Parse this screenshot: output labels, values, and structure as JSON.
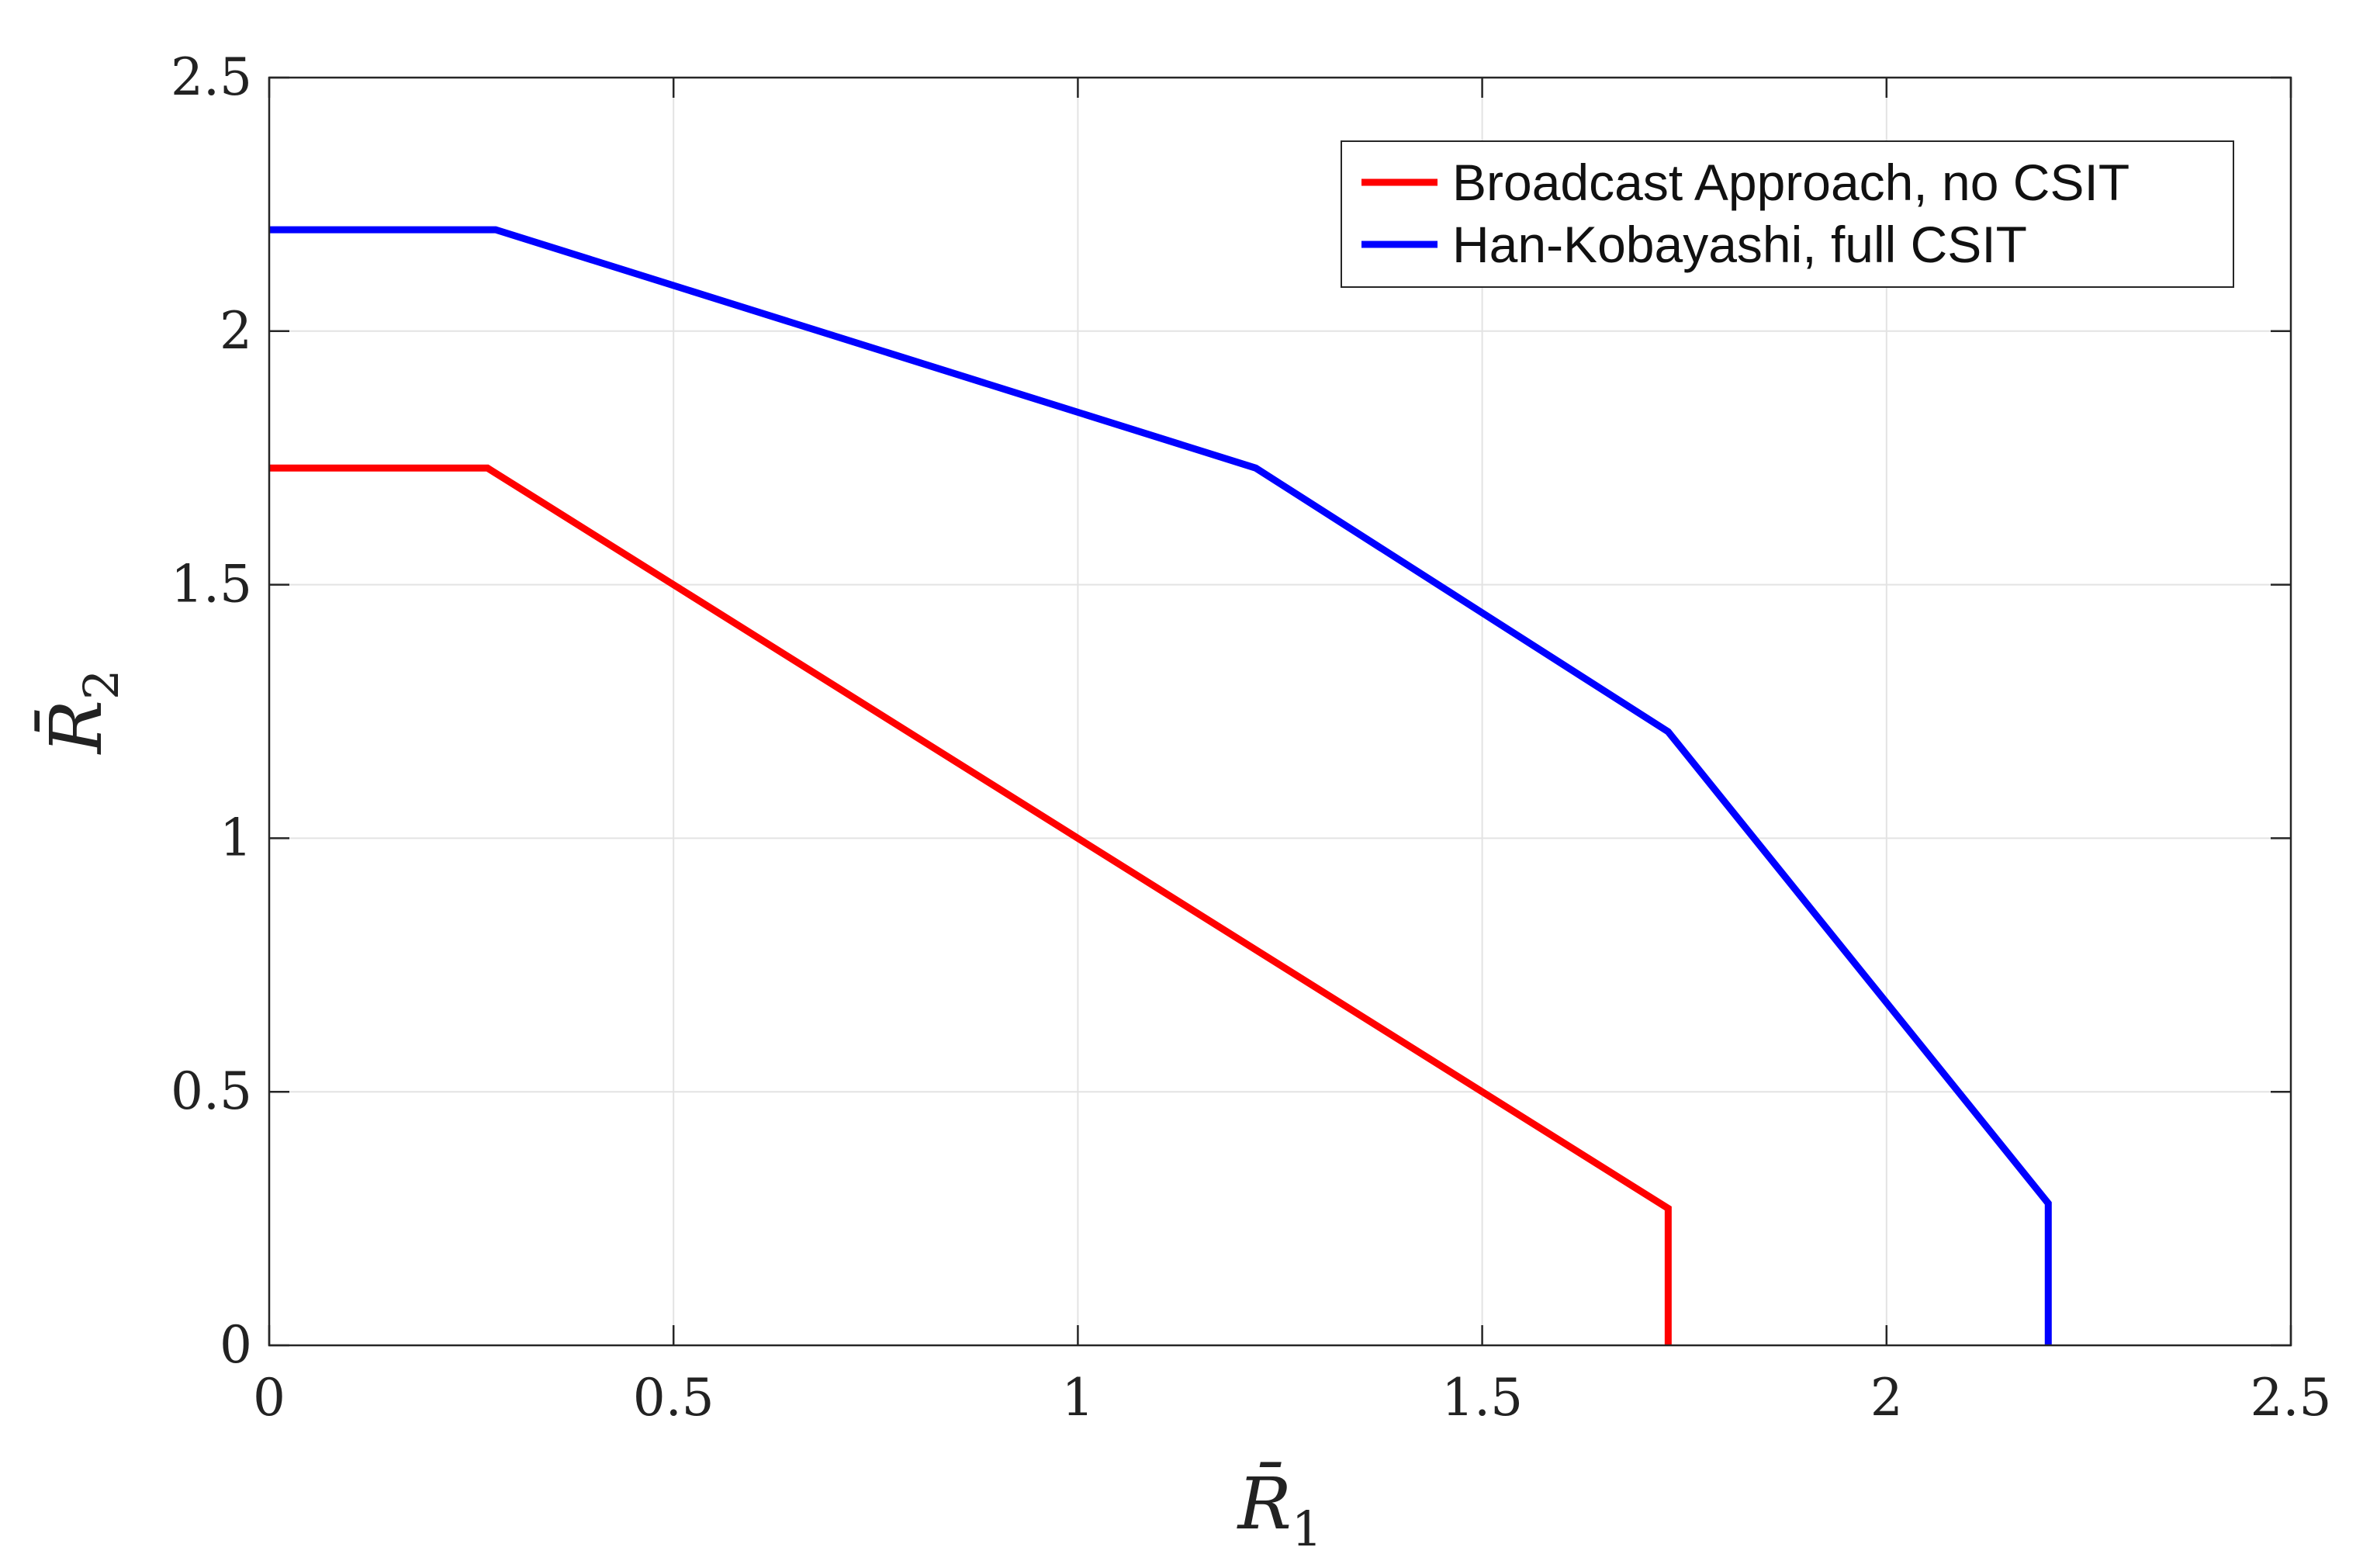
{
  "chart_data": {
    "type": "line",
    "title": "",
    "xlabel": {
      "main": "R̄",
      "sub": "1"
    },
    "ylabel": {
      "main": "R̄",
      "sub": "2"
    },
    "xlim": [
      0,
      2.5
    ],
    "ylim": [
      0,
      2.5
    ],
    "grid": true,
    "legend_position": "top-right",
    "xticks": [
      "0",
      "0.5",
      "1",
      "1.5",
      "2",
      "2.5"
    ],
    "yticks": [
      "0",
      "0.5",
      "1",
      "1.5",
      "2",
      "2.5"
    ],
    "series": [
      {
        "name": "Broadcast Approach, no CSIT",
        "color": "#ff0000",
        "x": [
          0,
          0.27,
          1.73,
          1.73
        ],
        "y": [
          1.73,
          1.73,
          0.27,
          0
        ]
      },
      {
        "name": "Han-Kobayashi, full CSIT",
        "color": "#0000ff",
        "x": [
          0,
          0.28,
          1.22,
          1.73,
          2.2,
          2.2
        ],
        "y": [
          2.2,
          2.2,
          1.73,
          1.21,
          0.28,
          0
        ]
      }
    ]
  }
}
